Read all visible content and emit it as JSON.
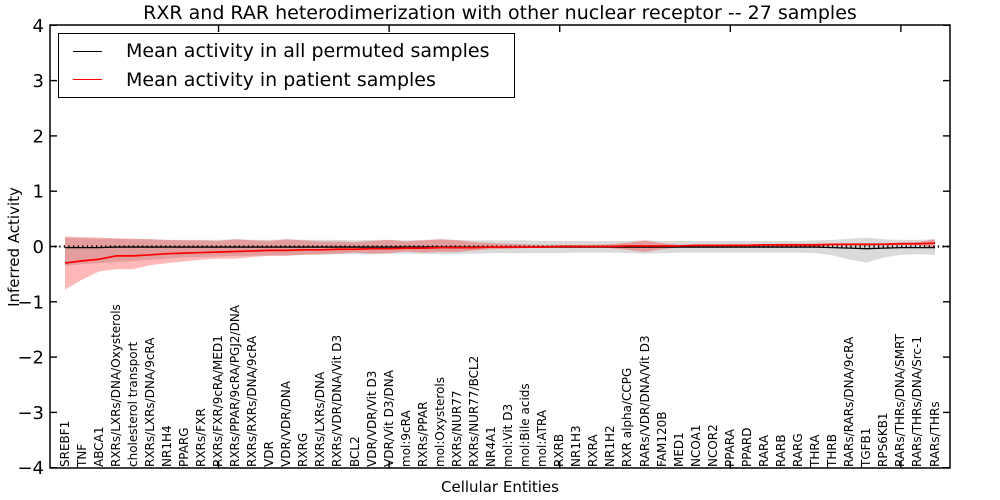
{
  "title": "RXR and RAR heterodimerization with other nuclear receptor -- 27 samples",
  "axes": {
    "xlabel": "Cellular Entities",
    "ylabel": "Inferred Activity",
    "y_ticks": [
      {
        "value": 4,
        "label": "4"
      },
      {
        "value": 3,
        "label": "3"
      },
      {
        "value": 2,
        "label": "2"
      },
      {
        "value": 1,
        "label": "1"
      },
      {
        "value": 0,
        "label": "0"
      },
      {
        "value": -1,
        "label": "−1"
      },
      {
        "value": -2,
        "label": "−2"
      },
      {
        "value": -3,
        "label": "−3"
      },
      {
        "value": -4,
        "label": "−4"
      }
    ]
  },
  "legend": {
    "entries": [
      {
        "label": "Mean activity in all permuted samples",
        "color": "#000000",
        "line_width": 1.3
      },
      {
        "label": "Mean activity in patient samples",
        "color": "#ff0000",
        "line_width": 1.7
      }
    ]
  },
  "colors": {
    "permuted_line": "#000000",
    "patient_line": "#ff0000",
    "permuted_band": "#8c8c8c",
    "patient_band": "#ff0000",
    "frame": "#000000"
  },
  "chart_data": {
    "type": "line",
    "title": "RXR and RAR heterodimerization with other nuclear receptor -- 27 samples",
    "xlabel": "Cellular Entities",
    "ylabel": "Inferred Activity",
    "ylim": [
      -4,
      4
    ],
    "zero_line": true,
    "x_tick_indices": [
      9,
      19,
      29,
      39,
      49
    ],
    "legend_position": "upper left",
    "categories": [
      "SREBF1",
      "TNF",
      "ABCA1",
      "RXRs/LXRs/DNA/Oxysterols",
      "cholesterol transport",
      "RXRs/LXRs/DNA/9cRA",
      "NR1H4",
      "PPARG",
      "RXRs/FXR",
      "RXRs/FXR/9cRA/MED1",
      "RXRs/PPAR/9cRA/PGJ2/DNA",
      "RXRs/RXRs/DNA/9cRA",
      "VDR",
      "VDR/VDR/DNA",
      "RXRG",
      "RXRs/LXRs/DNA",
      "RXRs/VDR/DNA/Vit D3",
      "BCL2",
      "VDR/VDR/Vit D3",
      "VDR/Vit D3/DNA",
      "mol:9cRA",
      "RXRs/PPAR",
      "mol:Oxysterols",
      "RXRs/NUR77",
      "RXRs/NUR77/BCL2",
      "NR4A1",
      "mol:Vit D3",
      "mol:Bile acids",
      "mol:ATRA",
      "RXRB",
      "NR1H3",
      "RXRA",
      "NR1H2",
      "RXR alpha/CCPG",
      "RARs/VDR/DNA/Vit D3",
      "FAM120B",
      "MED1",
      "NCOA1",
      "NCOR2",
      "PPARA",
      "PPARD",
      "RARA",
      "RARB",
      "RARG",
      "THRA",
      "THRB",
      "RARs/RARs/DNA/9cRA",
      "TGFB1",
      "RPS6KB1",
      "RARs/THRs/DNA/SMRT",
      "RARs/THRs/DNA/Src-1",
      "RARs/THRs"
    ],
    "series": [
      {
        "name": "Mean activity in all permuted samples",
        "name_id": "permuted-mean",
        "color": "#000000",
        "width": 1.3,
        "values": [
          -0.02,
          -0.02,
          -0.02,
          -0.01,
          -0.01,
          -0.01,
          -0.01,
          -0.01,
          -0.01,
          -0.01,
          -0.01,
          -0.01,
          -0.01,
          -0.01,
          -0.01,
          -0.01,
          -0.01,
          -0.01,
          -0.01,
          -0.01,
          -0.01,
          -0.01,
          -0.01,
          -0.01,
          -0.01,
          -0.01,
          -0.01,
          -0.01,
          -0.01,
          -0.01,
          -0.01,
          -0.01,
          -0.01,
          -0.01,
          -0.01,
          -0.01,
          -0.01,
          -0.01,
          -0.01,
          -0.01,
          -0.01,
          -0.01,
          -0.01,
          -0.01,
          -0.01,
          -0.02,
          -0.03,
          -0.04,
          -0.03,
          -0.02,
          -0.02,
          -0.02
        ]
      },
      {
        "name": "Mean activity in patient samples",
        "name_id": "patient-mean",
        "color": "#ff0000",
        "width": 1.7,
        "values": [
          -0.3,
          -0.26,
          -0.23,
          -0.17,
          -0.17,
          -0.15,
          -0.13,
          -0.12,
          -0.11,
          -0.1,
          -0.09,
          -0.08,
          -0.07,
          -0.07,
          -0.06,
          -0.06,
          -0.05,
          -0.05,
          -0.04,
          -0.04,
          -0.03,
          -0.03,
          -0.02,
          -0.02,
          -0.02,
          -0.01,
          -0.01,
          -0.01,
          -0.01,
          0.0,
          0.0,
          0.0,
          0.0,
          0.01,
          0.01,
          0.01,
          0.01,
          0.02,
          0.02,
          0.02,
          0.02,
          0.03,
          0.03,
          0.03,
          0.03,
          0.04,
          0.04,
          0.04,
          0.04,
          0.05,
          0.05,
          0.06
        ]
      }
    ],
    "bands": [
      {
        "name": "permuted",
        "color": "#8c8c8c",
        "opacity": 0.32,
        "upper": [
          0.16,
          0.15,
          0.14,
          0.14,
          0.13,
          0.13,
          0.12,
          0.12,
          0.12,
          0.12,
          0.13,
          0.12,
          0.12,
          0.13,
          0.12,
          0.12,
          0.12,
          0.11,
          0.12,
          0.12,
          0.11,
          0.12,
          0.13,
          0.12,
          0.11,
          0.11,
          0.11,
          0.11,
          0.1,
          0.1,
          0.1,
          0.1,
          0.1,
          0.1,
          0.11,
          0.1,
          0.1,
          0.1,
          0.1,
          0.1,
          0.1,
          0.1,
          0.1,
          0.1,
          0.11,
          0.12,
          0.14,
          0.16,
          0.13,
          0.12,
          0.12,
          0.13
        ],
        "lower": [
          -0.35,
          -0.32,
          -0.3,
          -0.28,
          -0.26,
          -0.24,
          -0.22,
          -0.2,
          -0.19,
          -0.18,
          -0.17,
          -0.17,
          -0.16,
          -0.16,
          -0.15,
          -0.15,
          -0.14,
          -0.14,
          -0.14,
          -0.13,
          -0.13,
          -0.13,
          -0.14,
          -0.13,
          -0.13,
          -0.12,
          -0.12,
          -0.12,
          -0.12,
          -0.12,
          -0.11,
          -0.11,
          -0.11,
          -0.12,
          -0.13,
          -0.12,
          -0.11,
          -0.11,
          -0.11,
          -0.11,
          -0.11,
          -0.11,
          -0.11,
          -0.11,
          -0.12,
          -0.16,
          -0.24,
          -0.29,
          -0.2,
          -0.15,
          -0.14,
          -0.15
        ]
      },
      {
        "name": "patient",
        "color": "#ff0000",
        "opacity": 0.28,
        "upper": [
          0.18,
          0.17,
          0.16,
          0.15,
          0.14,
          0.13,
          0.12,
          0.11,
          0.11,
          0.1,
          0.13,
          0.11,
          0.1,
          0.13,
          0.11,
          0.09,
          0.09,
          0.08,
          0.1,
          0.12,
          0.09,
          0.11,
          0.13,
          0.11,
          0.08,
          0.06,
          0.05,
          0.04,
          0.03,
          0.03,
          0.03,
          0.03,
          0.04,
          0.07,
          0.11,
          0.06,
          0.03,
          0.03,
          0.03,
          0.04,
          0.04,
          0.04,
          0.05,
          0.05,
          0.05,
          0.05,
          0.06,
          0.06,
          0.06,
          0.07,
          0.08,
          0.13
        ],
        "lower": [
          -0.78,
          -0.6,
          -0.45,
          -0.41,
          -0.41,
          -0.34,
          -0.3,
          -0.27,
          -0.24,
          -0.22,
          -0.22,
          -0.19,
          -0.17,
          -0.17,
          -0.15,
          -0.14,
          -0.13,
          -0.11,
          -0.13,
          -0.12,
          -0.09,
          -0.11,
          -0.1,
          -0.1,
          -0.07,
          -0.05,
          -0.04,
          -0.03,
          -0.02,
          -0.02,
          -0.02,
          -0.02,
          -0.03,
          -0.06,
          -0.1,
          -0.05,
          -0.02,
          -0.01,
          -0.01,
          -0.01,
          -0.01,
          -0.01,
          0.0,
          0.0,
          0.0,
          0.01,
          0.01,
          0.01,
          0.02,
          0.02,
          0.02,
          -0.02
        ]
      }
    ]
  }
}
